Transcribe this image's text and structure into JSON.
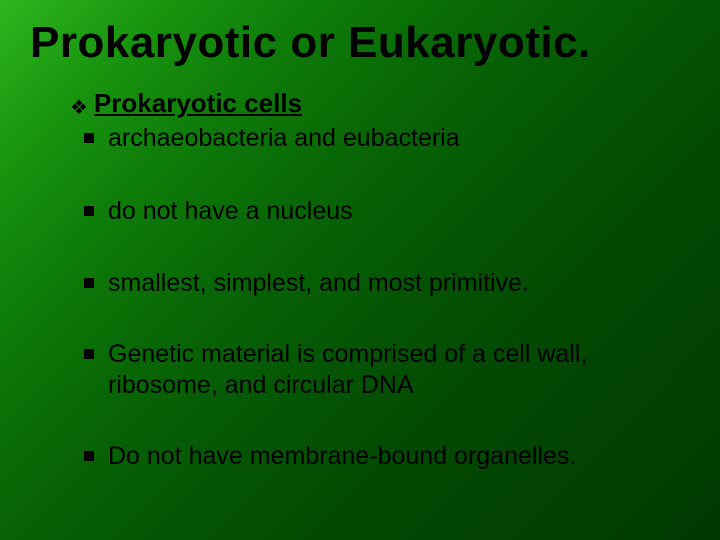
{
  "slide": {
    "title": "Prokaryotic or Eukaryotic.",
    "heading": "Prokaryotic cells",
    "bullets": [
      "archaeobacteria and eubacteria",
      "do not have a nucleus",
      "smallest, simplest, and most primitive.",
      "Genetic material is comprised of a cell wall, ribosome, and circular DNA",
      "Do not have membrane-bound organelles."
    ],
    "background_gradient": [
      "#2fb61e",
      "#013901"
    ],
    "title_color": "#000000",
    "text_color": "#000000",
    "title_fontsize": 44,
    "heading_fontsize": 26,
    "bullet_fontsize": 25,
    "diamond_bullet_glyph": "❖",
    "square_bullet_size": 10
  }
}
